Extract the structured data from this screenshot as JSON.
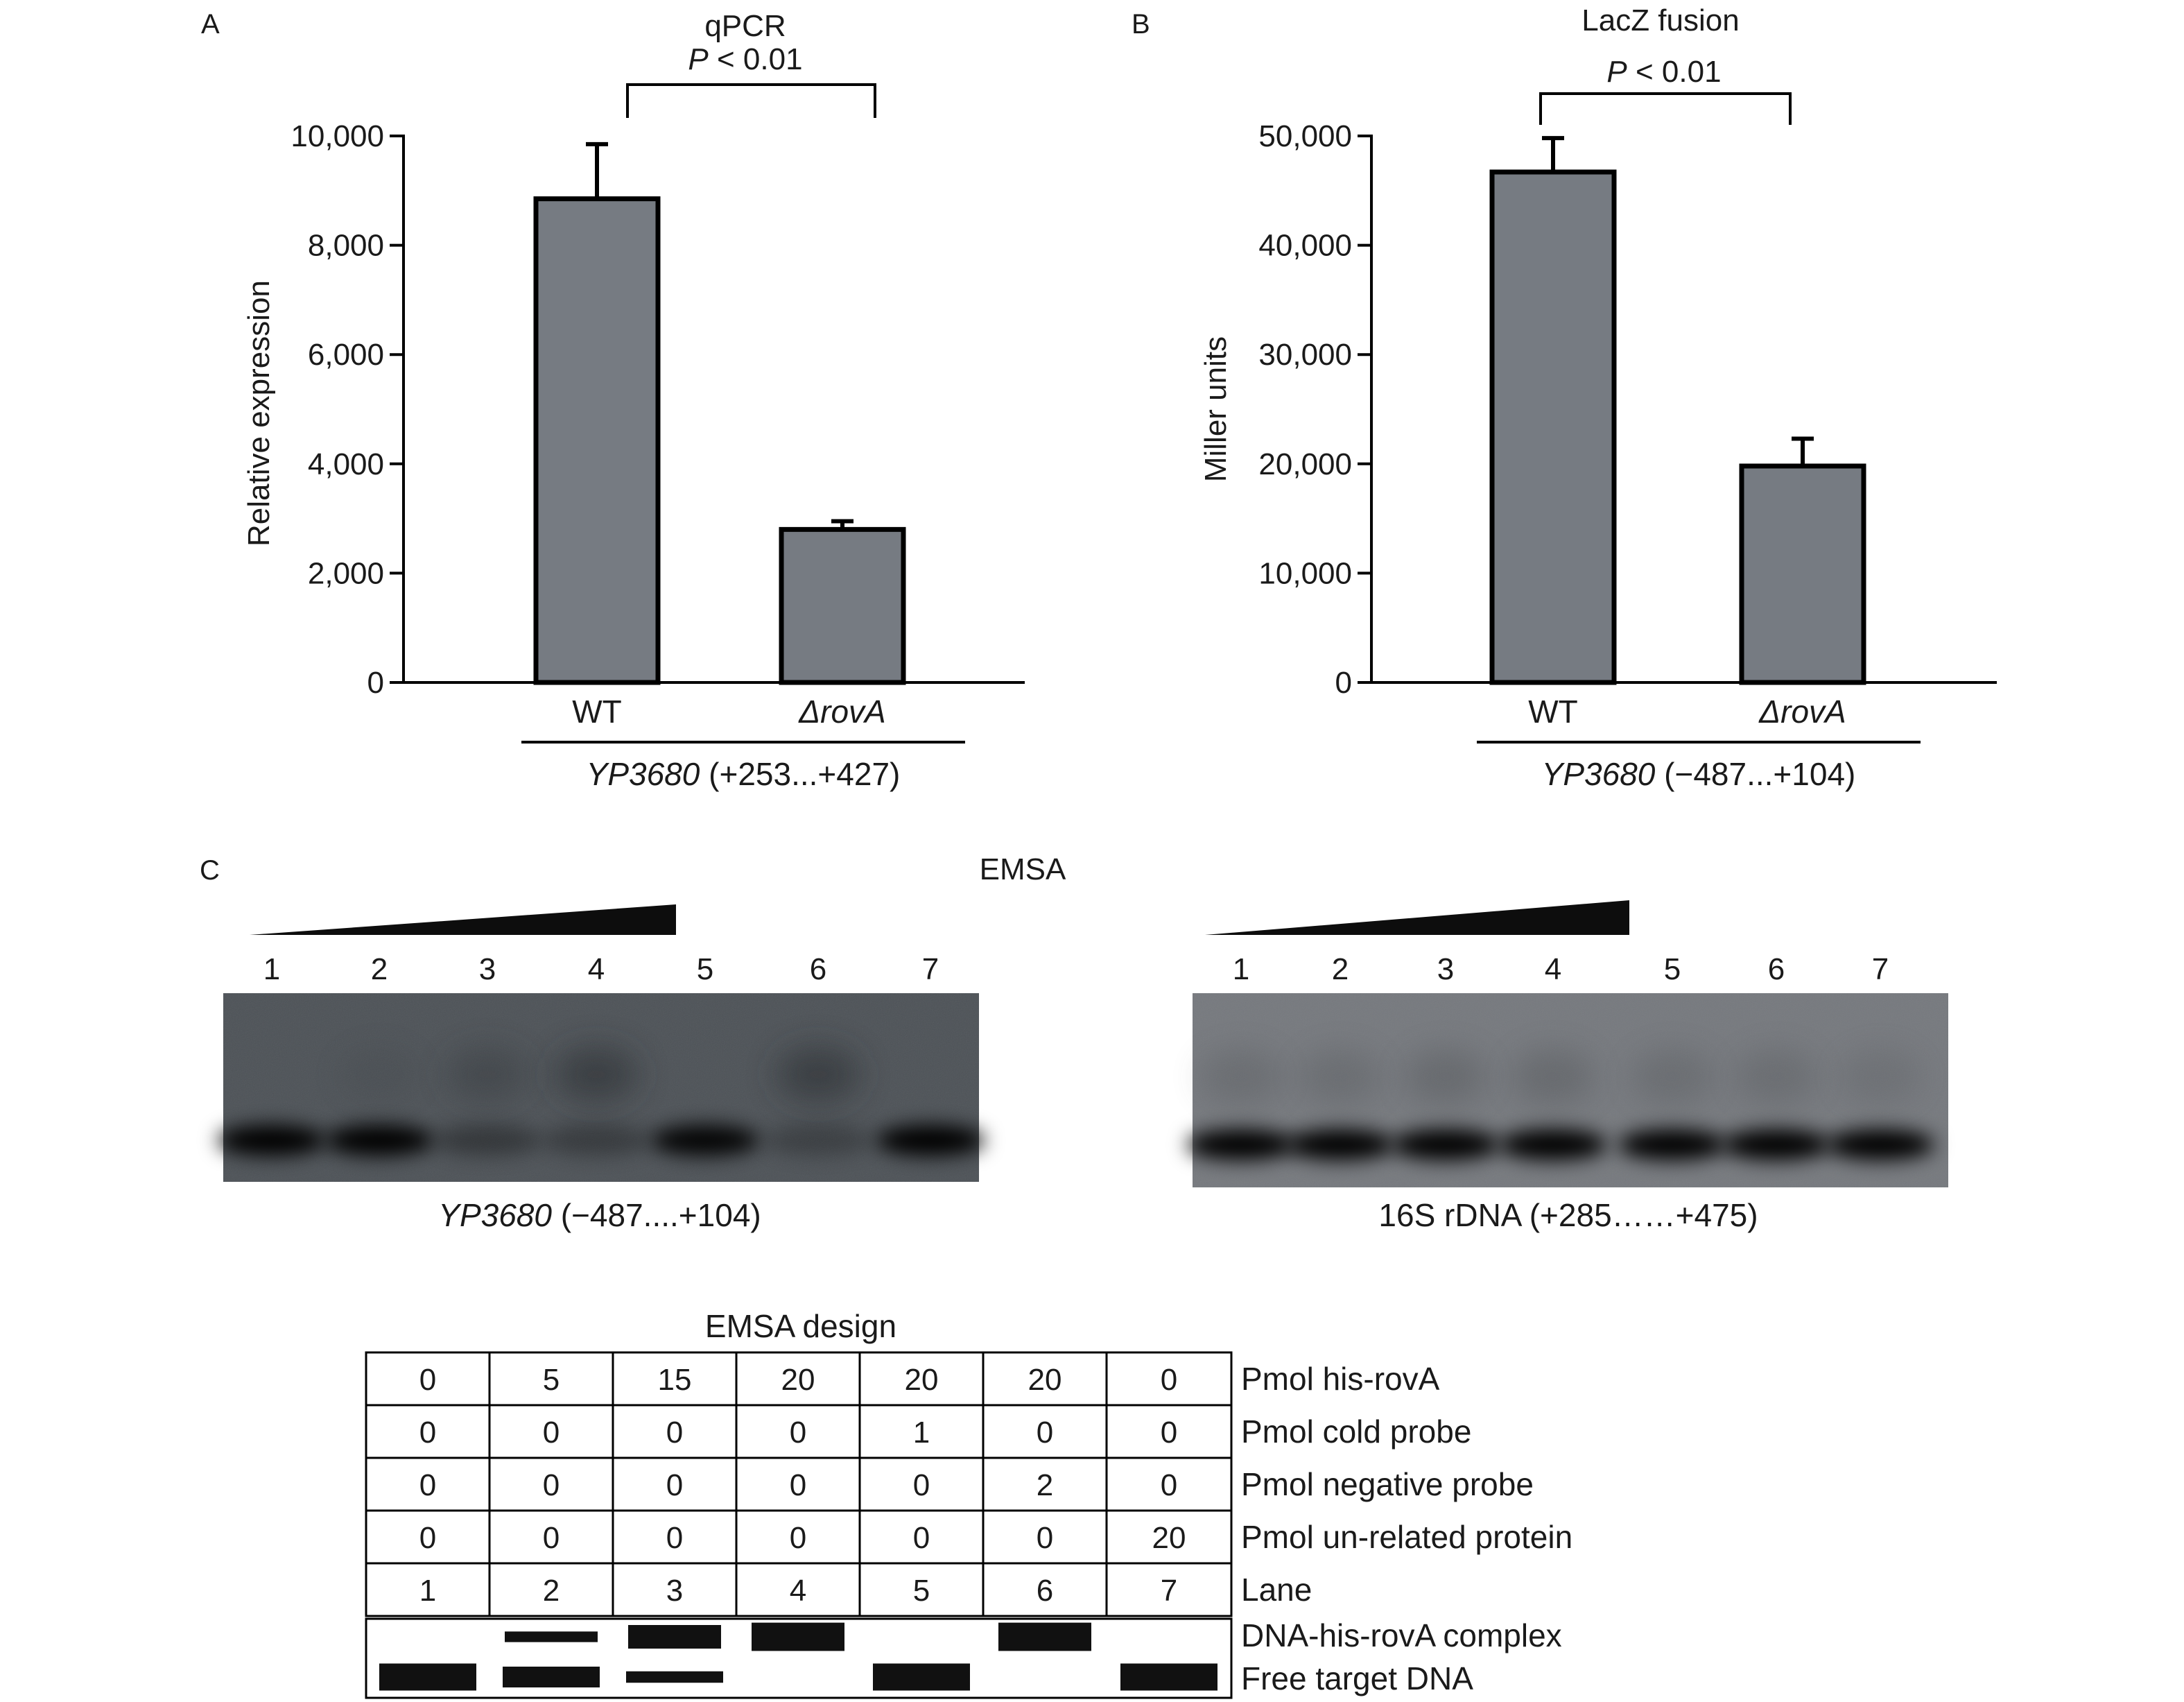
{
  "figure": {
    "panel_a": {
      "letter": "A",
      "chart_data": {
        "type": "bar",
        "title": "qPCR",
        "ylabel": "Relative expression",
        "categories": [
          "WT",
          "ΔrovA"
        ],
        "values": [
          8850,
          2800
        ],
        "errors": [
          1000,
          150
        ],
        "ylim": [
          0,
          10000
        ],
        "yticks": [
          0,
          2000,
          4000,
          6000,
          8000,
          10000
        ],
        "ytick_labels": [
          "0",
          "2,000",
          "4,000",
          "6,000",
          "8,000",
          "10,000"
        ],
        "significance": {
          "p": "P",
          "text": " < 0.01"
        },
        "group_label": {
          "gene": "YP3680",
          "range": " (+253...+427)"
        },
        "colors": {
          "bar": "#767b82",
          "edge": "#000000"
        }
      }
    },
    "panel_b": {
      "letter": "B",
      "chart_data": {
        "type": "bar",
        "title": "LacZ fusion",
        "ylabel": "Miller units",
        "categories": [
          "WT",
          "ΔrovA"
        ],
        "values": [
          46700,
          19800
        ],
        "errors": [
          3100,
          2500
        ],
        "ylim": [
          0,
          50000
        ],
        "yticks": [
          0,
          10000,
          20000,
          30000,
          40000,
          50000
        ],
        "ytick_labels": [
          "0",
          "10,000",
          "20,000",
          "30,000",
          "40,000",
          "50,000"
        ],
        "significance": {
          "p": "P",
          "text": " < 0.01"
        },
        "group_label": {
          "gene": "YP3680",
          "range": " (−487...+104)"
        },
        "colors": {
          "bar": "#767b82",
          "edge": "#000000"
        }
      }
    },
    "panel_c": {
      "letter": "C",
      "title": "EMSA",
      "gels": [
        {
          "lanes": [
            "1",
            "2",
            "3",
            "4",
            "5",
            "6",
            "7"
          ],
          "caption_gene": "YP3680",
          "caption_range": " (−487....+104)",
          "free_band_intensity": [
            1.0,
            1.0,
            0.35,
            0.3,
            0.95,
            0.25,
            1.0
          ],
          "complex_band_intensity": [
            0.0,
            0.1,
            0.3,
            0.55,
            0.0,
            0.55,
            0.0
          ]
        },
        {
          "lanes": [
            "1",
            "2",
            "3",
            "4",
            "5",
            "6",
            "7"
          ],
          "caption_gene": "",
          "caption_range": "16S rDNA (+285……+475)",
          "free_band_intensity": [
            1.0,
            1.0,
            1.0,
            1.0,
            1.0,
            1.0,
            1.0
          ],
          "complex_band_intensity": [
            0.2,
            0.2,
            0.25,
            0.25,
            0.2,
            0.2,
            0.15
          ]
        }
      ],
      "design": {
        "title": "EMSA  design",
        "rows": [
          {
            "label": "Pmol his-rovA",
            "values": [
              "0",
              "5",
              "15",
              "20",
              "20",
              "20",
              "0"
            ]
          },
          {
            "label": "Pmol cold probe",
            "values": [
              "0",
              "0",
              "0",
              "0",
              "1",
              "0",
              "0"
            ]
          },
          {
            "label": "Pmol negative probe",
            "values": [
              "0",
              "0",
              "0",
              "0",
              "0",
              "2",
              "0"
            ]
          },
          {
            "label": "Pmol un-related protein",
            "values": [
              "0",
              "0",
              "0",
              "0",
              "0",
              "0",
              "20"
            ]
          },
          {
            "label": "Lane",
            "values": [
              "1",
              "2",
              "3",
              "4",
              "5",
              "6",
              "7"
            ]
          }
        ],
        "schematic_labels": {
          "complex": "DNA-his-rovA complex",
          "free": "Free target DNA"
        },
        "complex_band_thickness": [
          0,
          0.45,
          1.0,
          1.2,
          0,
          1.2,
          0
        ],
        "free_band_thickness": [
          1.3,
          1.0,
          0.55,
          0,
          1.3,
          0,
          1.3
        ]
      }
    }
  }
}
